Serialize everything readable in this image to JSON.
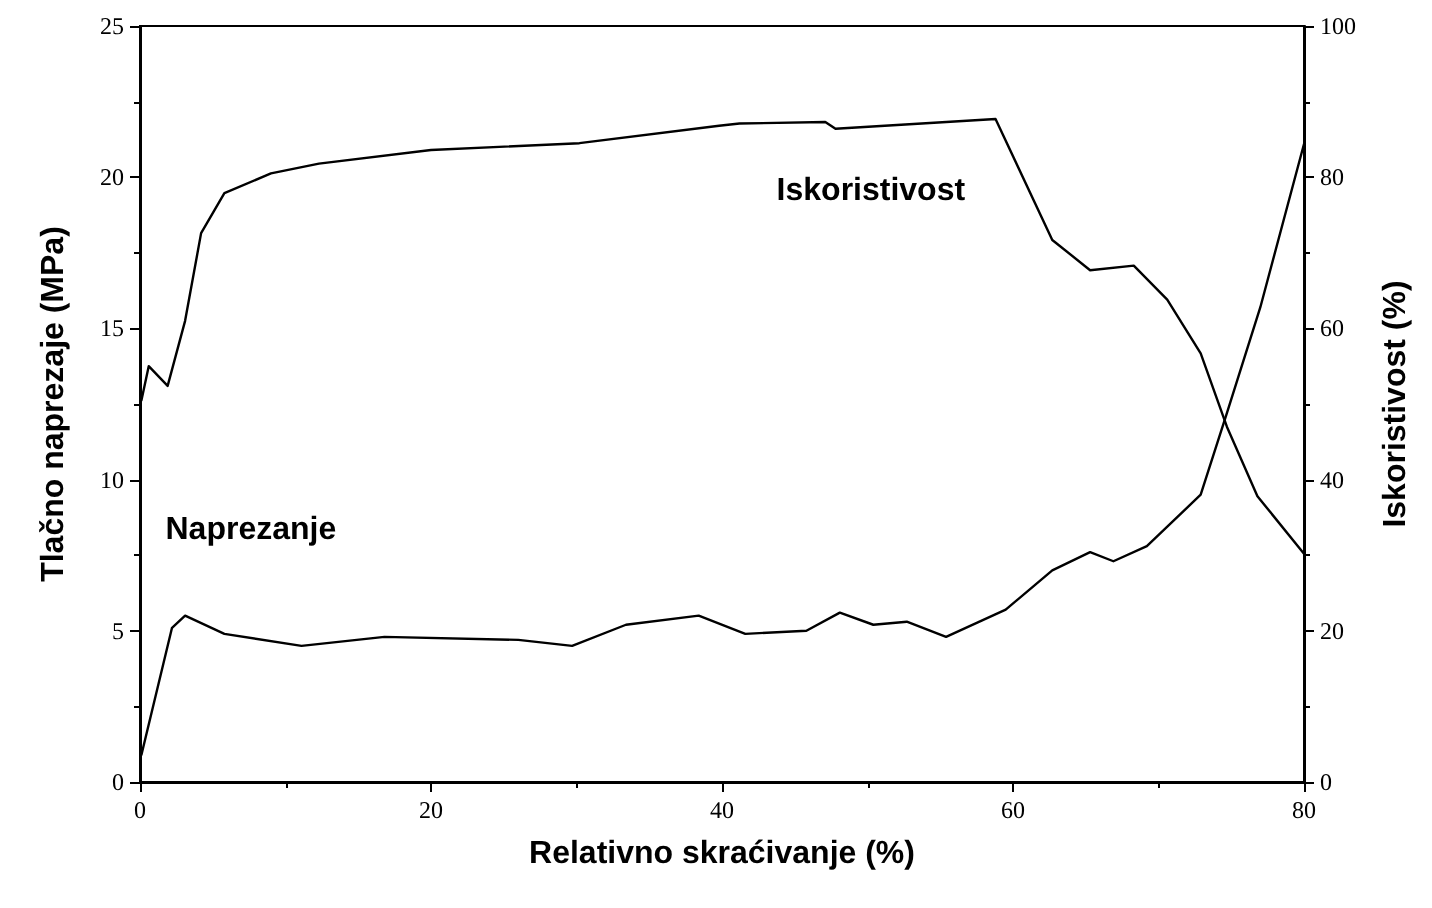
{
  "chart_data": {
    "type": "line",
    "xlabel": "Relativno skraćivanje (%)",
    "ylabel": "Tlačno naprezaje (MPa)",
    "y2label": "Iskoristivost (%)",
    "xlim": [
      0,
      80
    ],
    "xticks": [
      0,
      20,
      40,
      60,
      80
    ],
    "ylim": [
      0,
      25
    ],
    "yticks": [
      0,
      5,
      10,
      15,
      20,
      25
    ],
    "y2lim": [
      0,
      100
    ],
    "y2ticks": [
      0,
      20,
      40,
      60,
      80,
      100
    ],
    "grid": false,
    "legend": false,
    "marker": "none",
    "line_style": "solid",
    "series": [
      {
        "name": "Naprezanje",
        "color": "#000000",
        "x": [
          0.1,
          2.2,
          3.1,
          5.8,
          11.1,
          16.8,
          26,
          29.7,
          33.4,
          38.4,
          41.6,
          45.8,
          48.1,
          50.4,
          52.7,
          55.4,
          59.5,
          62.7,
          65.3,
          66.9,
          69.2,
          72.9,
          74.7,
          77,
          80
        ],
        "values": [
          0.9,
          5.1,
          5.5,
          4.9,
          4.5,
          4.8,
          4.7,
          4.5,
          5.2,
          5.5,
          4.9,
          5.0,
          5.6,
          5.2,
          5.3,
          4.8,
          5.7,
          7.0,
          7.6,
          7.3,
          7.8,
          9.5,
          12.2,
          15.7,
          21.1
        ]
      },
      {
        "name": "Iskoristivost",
        "color": "#000000",
        "axis": "y2",
        "x": [
          0.1,
          0.6,
          1.9,
          3.1,
          4.2,
          5.8,
          9,
          12.3,
          20,
          30.2,
          39.8,
          41.2,
          47.1,
          47.8,
          58.8,
          62.7,
          65.3,
          68.3,
          70.6,
          72.9,
          74.7,
          76.8,
          80
        ],
        "values": [
          50.5,
          55,
          52.4,
          61,
          72.6,
          77.9,
          80.5,
          81.8,
          83.6,
          84.5,
          86.8,
          87.1,
          87.3,
          86.4,
          87.7,
          71.7,
          67.7,
          68.3,
          63.8,
          56.7,
          47,
          37.8,
          30.2
        ]
      }
    ]
  }
}
